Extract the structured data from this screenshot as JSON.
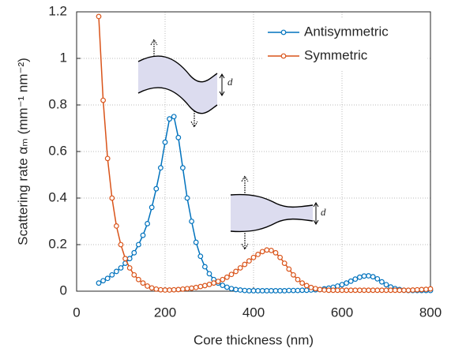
{
  "chart_data": {
    "type": "line",
    "xlabel": "Core thickness (nm)",
    "ylabel": "Scattering rate αₘ (mm⁻¹ nm⁻²)",
    "x": [
      50,
      60,
      70,
      80,
      90,
      100,
      110,
      120,
      130,
      140,
      150,
      160,
      170,
      180,
      190,
      200,
      210,
      220,
      230,
      240,
      250,
      260,
      270,
      280,
      290,
      300,
      310,
      320,
      330,
      340,
      350,
      360,
      370,
      380,
      390,
      400,
      410,
      420,
      430,
      440,
      450,
      460,
      470,
      480,
      490,
      500,
      510,
      520,
      530,
      540,
      550,
      560,
      570,
      580,
      590,
      600,
      610,
      620,
      630,
      640,
      650,
      660,
      670,
      680,
      690,
      700,
      710,
      720,
      730,
      740,
      750,
      760,
      770,
      780,
      790,
      800
    ],
    "series": [
      {
        "name": "Antisymmetric",
        "color": "#0072bd",
        "values": [
          0.035,
          0.045,
          0.055,
          0.07,
          0.085,
          0.1,
          0.12,
          0.14,
          0.165,
          0.2,
          0.24,
          0.29,
          0.36,
          0.44,
          0.53,
          0.64,
          0.74,
          0.75,
          0.66,
          0.53,
          0.4,
          0.3,
          0.21,
          0.15,
          0.105,
          0.075,
          0.05,
          0.035,
          0.025,
          0.017,
          0.011,
          0.007,
          0.005,
          0.003,
          0.002,
          0.002,
          0.002,
          0.002,
          0.002,
          0.002,
          0.002,
          0.002,
          0.002,
          0.003,
          0.003,
          0.003,
          0.004,
          0.004,
          0.005,
          0.006,
          0.007,
          0.01,
          0.013,
          0.017,
          0.022,
          0.028,
          0.035,
          0.043,
          0.052,
          0.06,
          0.065,
          0.066,
          0.062,
          0.053,
          0.04,
          0.028,
          0.018,
          0.011,
          0.007,
          0.004,
          0.003,
          0.003,
          0.003,
          0.003,
          0.003,
          0.003
        ]
      },
      {
        "name": "Symmetric",
        "color": "#d95319",
        "values": [
          1.18,
          0.82,
          0.57,
          0.4,
          0.28,
          0.2,
          0.14,
          0.1,
          0.07,
          0.05,
          0.035,
          0.022,
          0.014,
          0.009,
          0.006,
          0.005,
          0.005,
          0.006,
          0.007,
          0.009,
          0.011,
          0.013,
          0.016,
          0.02,
          0.024,
          0.029,
          0.035,
          0.042,
          0.05,
          0.06,
          0.072,
          0.085,
          0.1,
          0.115,
          0.13,
          0.145,
          0.158,
          0.17,
          0.177,
          0.175,
          0.165,
          0.145,
          0.12,
          0.095,
          0.07,
          0.05,
          0.035,
          0.024,
          0.016,
          0.011,
          0.007,
          0.005,
          0.004,
          0.004,
          0.004,
          0.004,
          0.004,
          0.004,
          0.004,
          0.004,
          0.004,
          0.004,
          0.004,
          0.004,
          0.004,
          0.004,
          0.004,
          0.004,
          0.004,
          0.004,
          0.004,
          0.005,
          0.006,
          0.007,
          0.008,
          0.01
        ]
      }
    ],
    "xlim": [
      0,
      800
    ],
    "xticks": [
      0,
      200,
      400,
      600,
      800
    ],
    "ylim": [
      0,
      1.2
    ],
    "yticks": [
      0,
      0.2,
      0.4,
      0.6,
      0.8,
      1,
      1.2
    ],
    "grid": true,
    "legend": "upper right",
    "annotations": [
      "d",
      "d"
    ]
  }
}
